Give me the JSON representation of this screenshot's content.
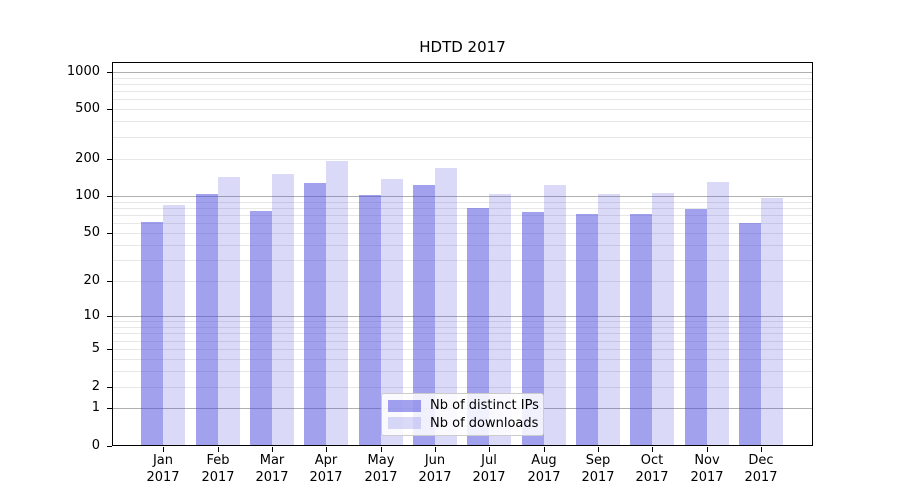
{
  "chart_data": {
    "type": "bar",
    "title": "HDTD 2017",
    "categories": [
      "Jan",
      "Feb",
      "Mar",
      "Apr",
      "May",
      "Jun",
      "Jul",
      "Aug",
      "Sep",
      "Oct",
      "Nov",
      "Dec"
    ],
    "category_year": "2017",
    "series": [
      {
        "name": "Nb of distinct IPs",
        "color": "rgba(68,68,221,0.5)",
        "values": [
          62,
          103,
          76,
          128,
          102,
          124,
          80,
          74,
          72,
          72,
          78,
          60
        ]
      },
      {
        "name": "Nb of downloads",
        "color": "rgba(68,68,221,0.2)",
        "values": [
          84,
          143,
          151,
          192,
          138,
          170,
          103,
          124,
          103,
          106,
          130,
          97
        ]
      }
    ],
    "xlabel": "",
    "ylabel": "",
    "y_scale": "log10(1+y)",
    "y_ticks": [
      0,
      1,
      2,
      5,
      10,
      20,
      50,
      100,
      200,
      500,
      1000
    ],
    "ylim": [
      0,
      1200
    ],
    "grid": true,
    "grid_major_values": [
      1,
      10,
      100,
      1000
    ],
    "legend_position": "lower center",
    "colors": {
      "grid_major": "#b0b0b0",
      "grid_minor": "#e7e7e7",
      "spine": "#000000",
      "text": "#000000"
    }
  }
}
